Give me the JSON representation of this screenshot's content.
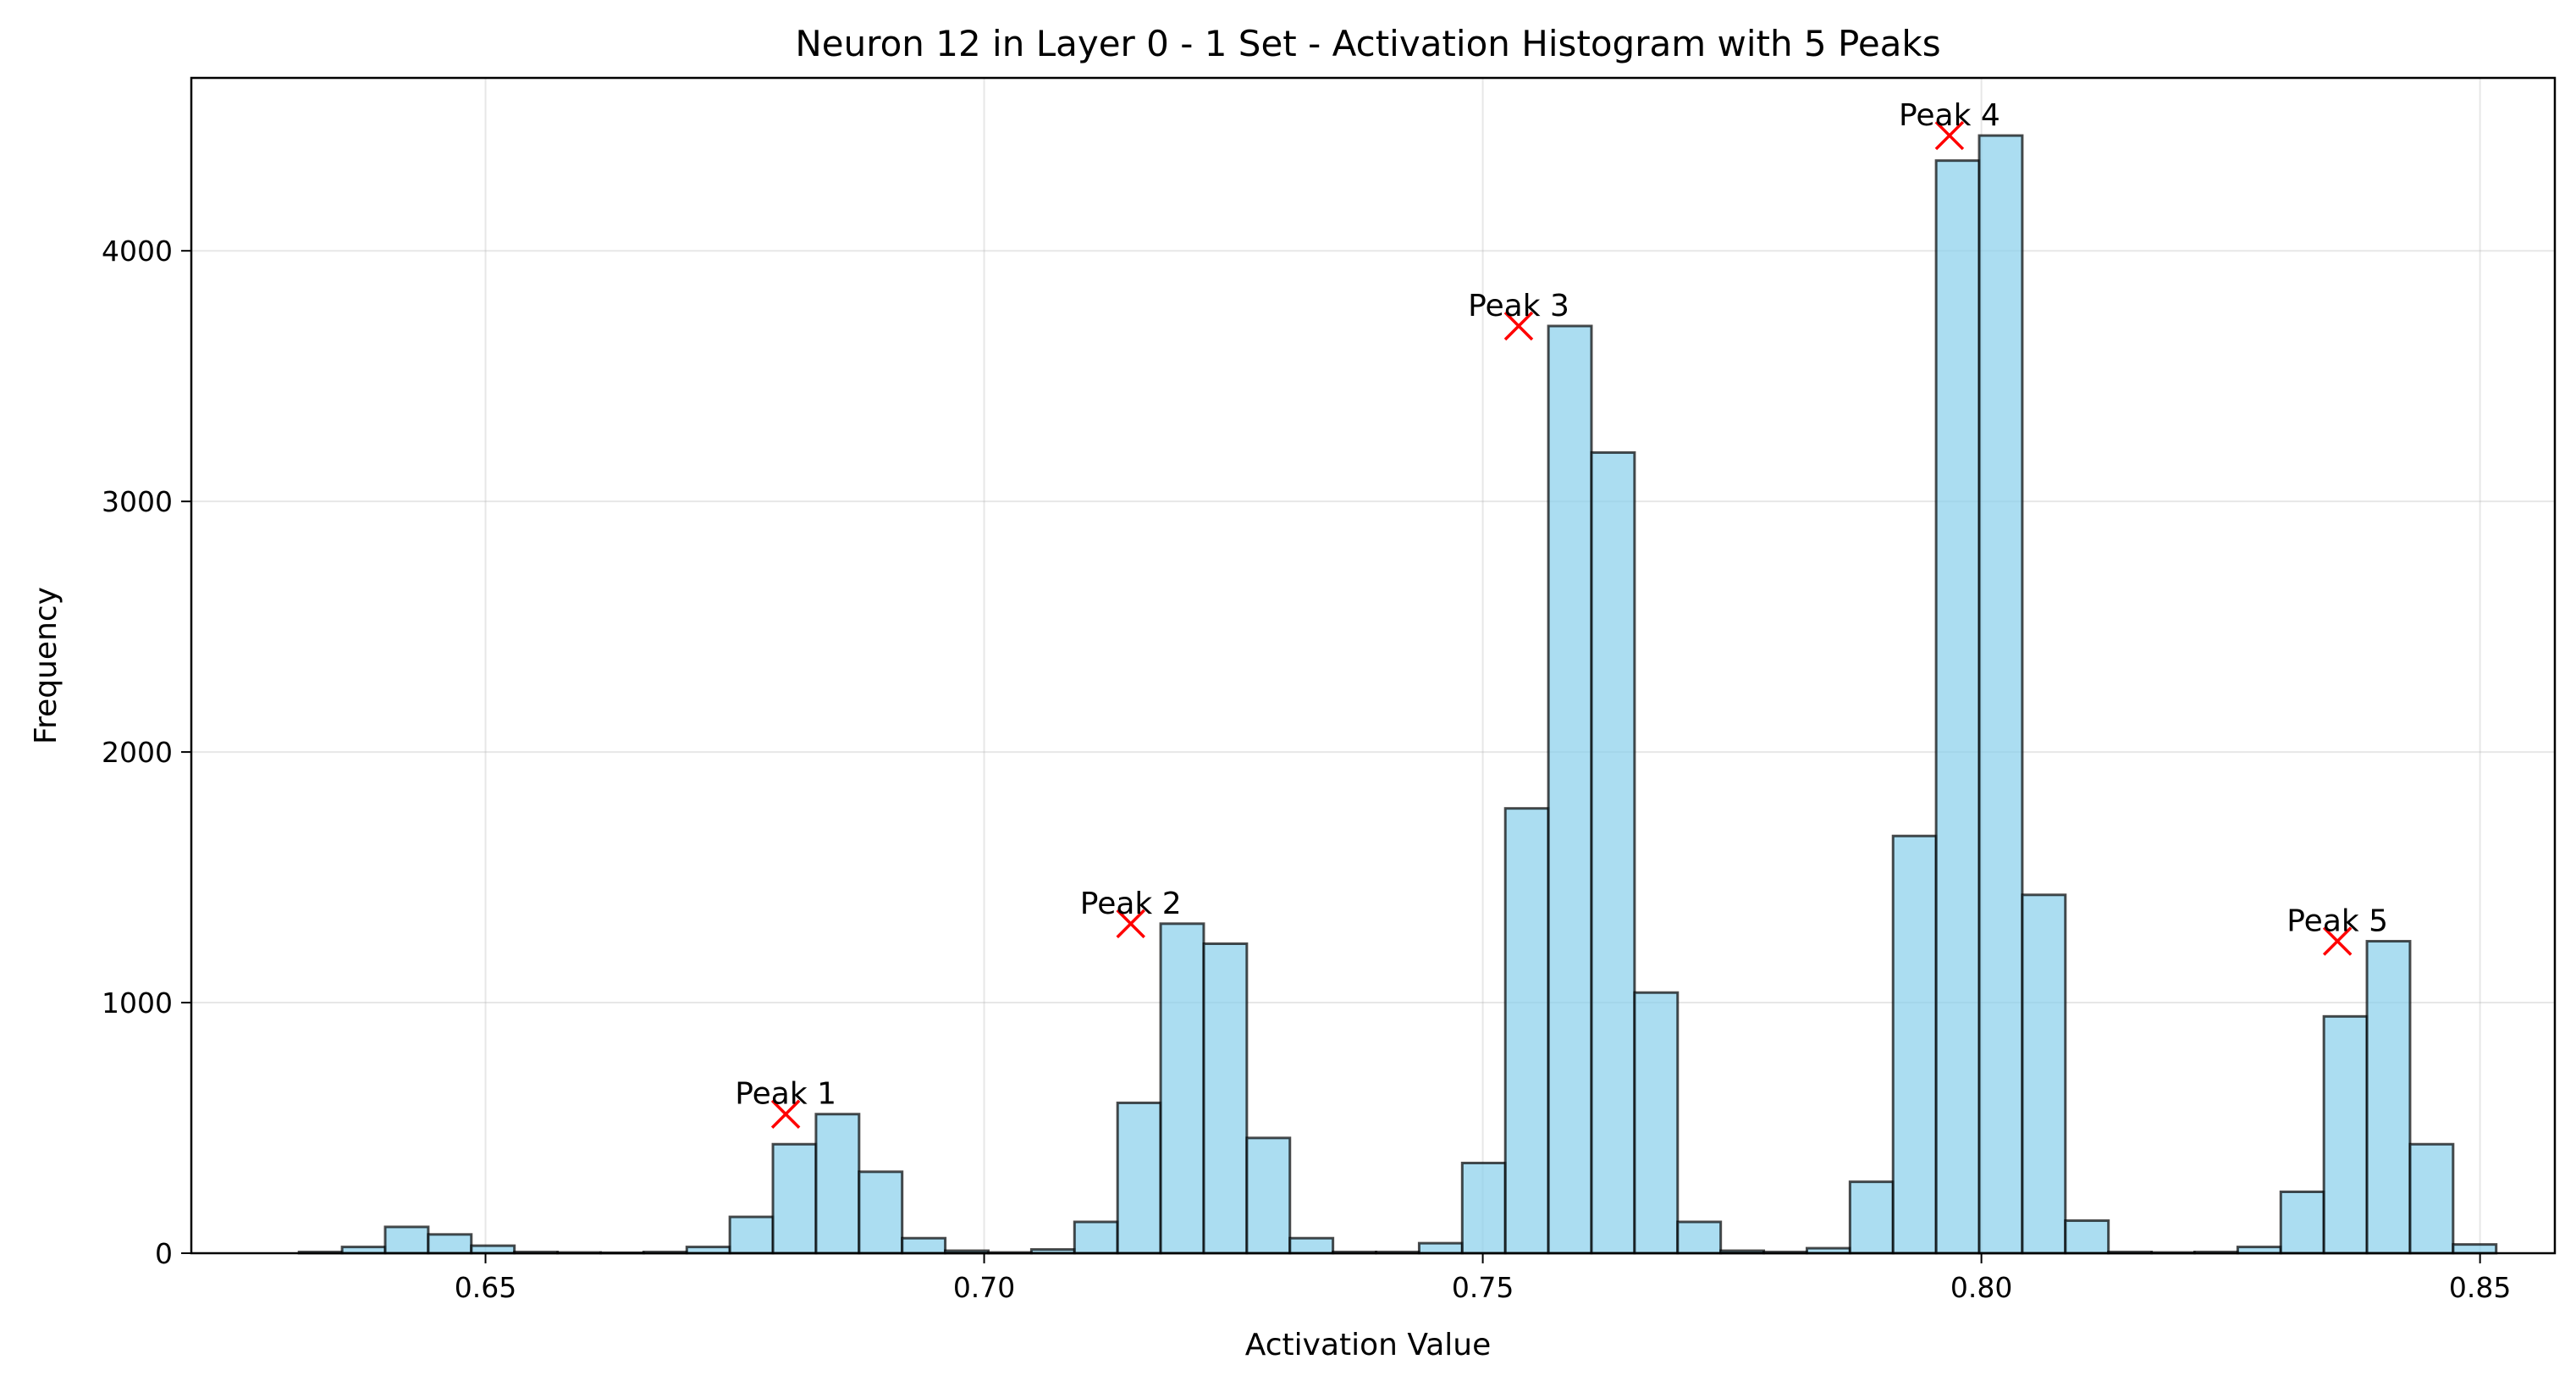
{
  "chart_data": {
    "type": "bar",
    "title": "Neuron 12 in Layer 0 - 1 Set - Activation Histogram with 5 Peaks",
    "xlabel": "Activation Value",
    "ylabel": "Frequency",
    "xlim": [
      0.6205,
      0.8575
    ],
    "ylim": [
      0,
      4690
    ],
    "xticks": [
      0.65,
      0.7,
      0.75,
      0.8,
      0.85
    ],
    "xtick_labels": [
      "0.65",
      "0.70",
      "0.75",
      "0.80",
      "0.85"
    ],
    "yticks": [
      0,
      1000,
      2000,
      3000,
      4000
    ],
    "ytick_labels": [
      "0",
      "1000",
      "2000",
      "3000",
      "4000"
    ],
    "grid": true,
    "bin_start": 0.6313,
    "bin_width": 0.00432,
    "values": [
      5,
      25,
      105,
      75,
      30,
      5,
      3,
      2,
      5,
      25,
      145,
      435,
      555,
      325,
      60,
      10,
      3,
      15,
      125,
      600,
      1315,
      1235,
      460,
      60,
      5,
      5,
      40,
      360,
      1775,
      3700,
      3195,
      1040,
      125,
      10,
      5,
      20,
      285,
      1665,
      4360,
      4460,
      1430,
      130,
      5,
      3,
      5,
      25,
      245,
      945,
      1245,
      435,
      35
    ],
    "bar_color": "#87CEEB",
    "bar_edge_color": "#000000",
    "peaks": [
      {
        "label": "Peak 1",
        "x": 0.6801,
        "y": 555
      },
      {
        "label": "Peak 2",
        "x": 0.7147,
        "y": 1315
      },
      {
        "label": "Peak 3",
        "x": 0.7536,
        "y": 3700
      },
      {
        "label": "Peak 4",
        "x": 0.7968,
        "y": 4460
      },
      {
        "label": "Peak 5",
        "x": 0.8357,
        "y": 1245
      }
    ],
    "peak_marker_color": "#FF0000"
  }
}
